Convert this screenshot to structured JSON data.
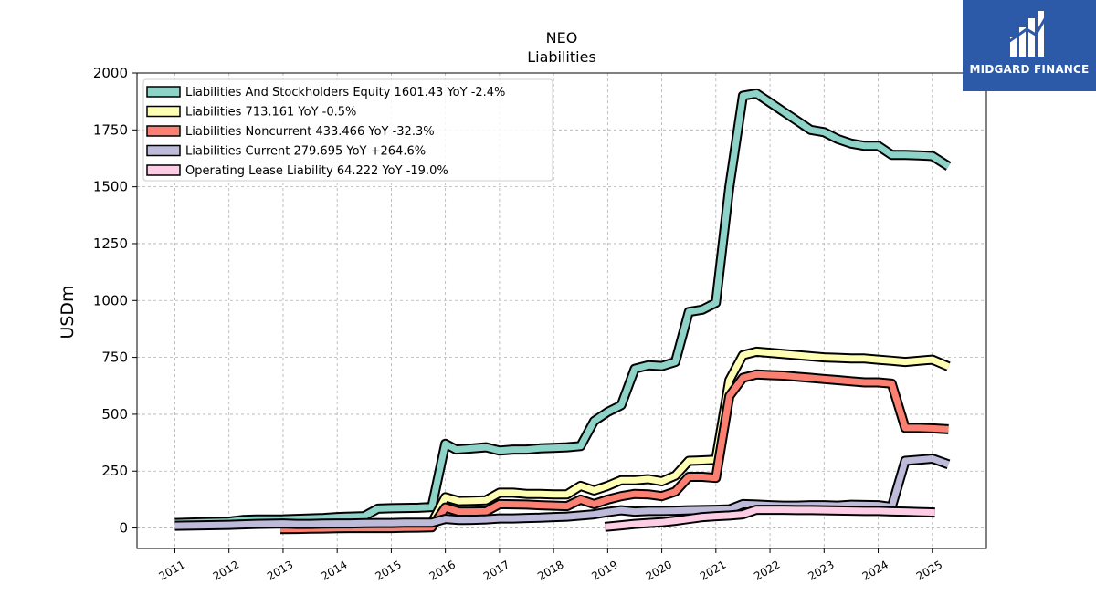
{
  "chart_data": {
    "type": "area",
    "title": "NEO",
    "subtitle": "Liabilities",
    "ylabel": "USDm",
    "xlabel": "",
    "ylim": [
      -90,
      2000
    ],
    "xlim": [
      2010.3,
      2026.0
    ],
    "yticks": [
      0,
      250,
      500,
      750,
      1000,
      1250,
      1500,
      1750,
      2000
    ],
    "xticks": [
      "2011",
      "2012",
      "2013",
      "2014",
      "2015",
      "2016",
      "2017",
      "2018",
      "2019",
      "2020",
      "2021",
      "2022",
      "2023",
      "2024",
      "2025"
    ],
    "grid": true,
    "legend_position": "top-left",
    "series": [
      {
        "name": "Liabilities And Stockholders Equity",
        "legend": "Liabilities And Stockholders Equity  1601.43 YoY -2.4%",
        "color": "#8dd3c7",
        "x": [
          2011.0,
          2011.5,
          2012.0,
          2012.25,
          2012.5,
          2013.0,
          2013.25,
          2013.5,
          2013.75,
          2014.0,
          2014.25,
          2014.5,
          2014.75,
          2015.0,
          2015.25,
          2015.5,
          2015.75,
          2016.0,
          2016.2,
          2016.5,
          2016.75,
          2017.0,
          2017.25,
          2017.5,
          2017.75,
          2018.0,
          2018.25,
          2018.5,
          2018.75,
          2019.0,
          2019.25,
          2019.5,
          2019.75,
          2020.0,
          2020.25,
          2020.5,
          2020.75,
          2021.0,
          2021.25,
          2021.5,
          2021.75,
          2022.0,
          2022.25,
          2022.5,
          2022.75,
          2023.0,
          2023.25,
          2023.5,
          2023.75,
          2024.0,
          2024.25,
          2024.5,
          2024.75,
          2025.0,
          2025.3
        ],
        "y": [
          22,
          25,
          28,
          35,
          37,
          38,
          40,
          42,
          44,
          48,
          50,
          52,
          85,
          87,
          88,
          89,
          92,
          370,
          345,
          350,
          355,
          340,
          345,
          345,
          350,
          352,
          355,
          360,
          470,
          510,
          540,
          700,
          715,
          712,
          730,
          950,
          960,
          990,
          1500,
          1900,
          1910,
          1870,
          1830,
          1790,
          1750,
          1740,
          1710,
          1690,
          1680,
          1680,
          1640,
          1640,
          1638,
          1635,
          1590
        ]
      },
      {
        "name": "Liabilities",
        "legend": "Liabilities  713.161 YoY -0.5%",
        "color": "#ffffb3",
        "x": [
          2012.95,
          2013.25,
          2013.5,
          2013.75,
          2014.0,
          2014.25,
          2014.5,
          2014.75,
          2015.0,
          2015.25,
          2015.5,
          2015.75,
          2016.0,
          2016.25,
          2016.5,
          2016.75,
          2017.0,
          2017.25,
          2017.5,
          2017.75,
          2018.0,
          2018.25,
          2018.5,
          2018.75,
          2019.0,
          2019.25,
          2019.5,
          2019.75,
          2020.0,
          2020.25,
          2020.5,
          2020.75,
          2021.0,
          2021.25,
          2021.5,
          2021.75,
          2022.0,
          2022.25,
          2022.5,
          2022.75,
          2023.0,
          2023.25,
          2023.5,
          2023.75,
          2024.0,
          2024.25,
          2024.5,
          2024.75,
          2025.0,
          2025.3
        ],
        "y": [
          5,
          6,
          7,
          8,
          10,
          12,
          14,
          15,
          16,
          18,
          20,
          22,
          135,
          118,
          120,
          122,
          155,
          155,
          150,
          150,
          148,
          148,
          185,
          165,
          185,
          210,
          210,
          215,
          205,
          230,
          295,
          297,
          300,
          650,
          760,
          775,
          770,
          765,
          760,
          755,
          750,
          748,
          745,
          745,
          740,
          735,
          730,
          735,
          740,
          710
        ]
      },
      {
        "name": "Liabilities Noncurrent",
        "legend": "Liabilities Noncurrent  433.466 YoY -32.3%",
        "color": "#fb8072",
        "x": [
          2012.95,
          2013.25,
          2013.5,
          2013.75,
          2014.0,
          2014.25,
          2014.5,
          2014.75,
          2015.0,
          2015.25,
          2015.5,
          2015.75,
          2016.0,
          2016.25,
          2016.5,
          2016.75,
          2017.0,
          2017.25,
          2017.5,
          2017.75,
          2018.0,
          2018.25,
          2018.5,
          2018.75,
          2019.0,
          2019.25,
          2019.5,
          2019.75,
          2020.0,
          2020.25,
          2020.5,
          2020.75,
          2021.0,
          2021.25,
          2021.5,
          2021.75,
          2022.0,
          2022.25,
          2022.5,
          2022.75,
          2023.0,
          2023.25,
          2023.5,
          2023.75,
          2024.0,
          2024.25,
          2024.5,
          2024.75,
          2025.0,
          2025.3
        ],
        "y": [
          -5,
          -4,
          -3,
          -2,
          -1,
          0,
          0,
          0,
          0,
          1,
          2,
          3,
          90,
          72,
          72,
          73,
          105,
          104,
          103,
          100,
          98,
          96,
          125,
          105,
          125,
          140,
          150,
          148,
          140,
          160,
          225,
          225,
          220,
          580,
          660,
          675,
          672,
          670,
          665,
          660,
          655,
          650,
          645,
          640,
          640,
          635,
          440,
          440,
          438,
          434
        ]
      },
      {
        "name": "Liabilities Current",
        "legend": "Liabilities Current  279.695 YoY +264.6%",
        "color": "#bebada",
        "x": [
          2011.0,
          2011.5,
          2012.0,
          2012.5,
          2013.0,
          2013.25,
          2013.5,
          2013.75,
          2014.0,
          2014.25,
          2014.5,
          2014.75,
          2015.0,
          2015.25,
          2015.5,
          2015.75,
          2016.0,
          2016.25,
          2016.5,
          2016.75,
          2017.0,
          2017.25,
          2017.5,
          2017.75,
          2018.0,
          2018.25,
          2018.5,
          2018.75,
          2019.0,
          2019.25,
          2019.5,
          2019.75,
          2020.0,
          2020.25,
          2020.5,
          2020.75,
          2021.0,
          2021.25,
          2021.5,
          2021.75,
          2022.0,
          2022.25,
          2022.5,
          2022.75,
          2023.0,
          2023.25,
          2023.5,
          2023.75,
          2024.0,
          2024.25,
          2024.5,
          2024.75,
          2025.0,
          2025.3
        ],
        "y": [
          10,
          12,
          14,
          18,
          20,
          18,
          18,
          19,
          20,
          20,
          21,
          22,
          22,
          23,
          23,
          23,
          40,
          35,
          36,
          38,
          42,
          42,
          44,
          45,
          48,
          50,
          55,
          60,
          70,
          78,
          72,
          75,
          75,
          76,
          78,
          79,
          80,
          82,
          105,
          103,
          100,
          98,
          98,
          100,
          100,
          98,
          102,
          101,
          100,
          92,
          295,
          300,
          305,
          280
        ]
      },
      {
        "name": "Operating Lease Liability",
        "legend": "Operating Lease Liability  64.222 YoY -19.0%",
        "color": "#fccde5",
        "x": [
          2018.95,
          2019.25,
          2019.5,
          2019.75,
          2020.0,
          2020.25,
          2020.5,
          2020.75,
          2021.0,
          2021.25,
          2021.5,
          2021.75,
          2022.0,
          2022.25,
          2022.5,
          2022.75,
          2023.0,
          2023.25,
          2023.5,
          2023.75,
          2024.0,
          2024.25,
          2024.5,
          2024.75,
          2025.05
        ],
        "y": [
          5,
          12,
          18,
          22,
          25,
          32,
          40,
          48,
          52,
          55,
          60,
          80,
          80,
          80,
          79,
          79,
          78,
          77,
          76,
          75,
          75,
          73,
          72,
          70,
          68
        ]
      }
    ]
  },
  "logo": {
    "text": "MIDGARD FINANCE",
    "bg_color": "#2d5aa8",
    "icon": "bar-chart-logo-icon"
  }
}
